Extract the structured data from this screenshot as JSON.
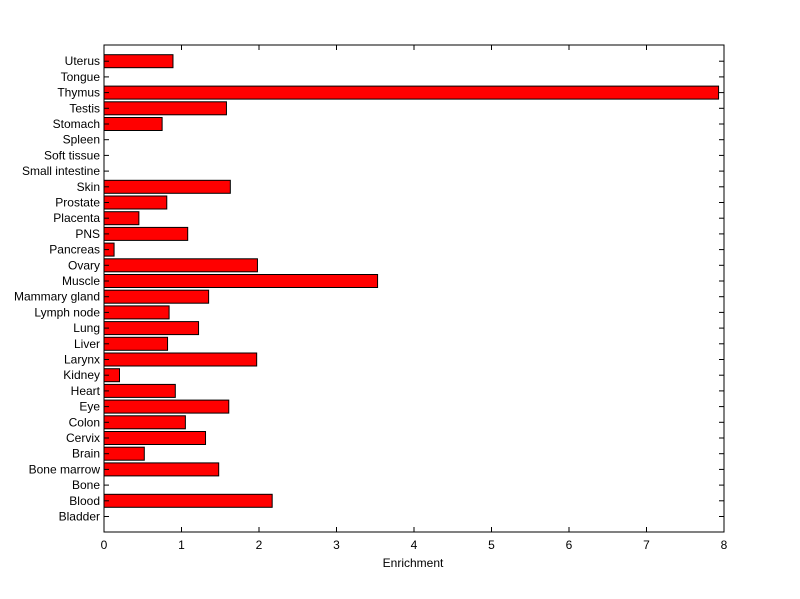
{
  "chart_data": {
    "type": "bar",
    "orientation": "horizontal",
    "title": "",
    "xlabel": "Enrichment",
    "ylabel": "",
    "xlim": [
      0,
      8
    ],
    "x_ticks": [
      0,
      1,
      2,
      3,
      4,
      5,
      6,
      7,
      8
    ],
    "grid": false,
    "legend": "none",
    "bar_color": "#ff0000",
    "bar_edge_color": "#000000",
    "categories": [
      "Bladder",
      "Blood",
      "Bone",
      "Bone marrow",
      "Brain",
      "Cervix",
      "Colon",
      "Eye",
      "Heart",
      "Kidney",
      "Larynx",
      "Liver",
      "Lung",
      "Lymph node",
      "Mammary gland",
      "Muscle",
      "Ovary",
      "Pancreas",
      "PNS",
      "Placenta",
      "Prostate",
      "Skin",
      "Small intestine",
      "Soft tissue",
      "Spleen",
      "Stomach",
      "Testis",
      "Thymus",
      "Tongue",
      "Uterus"
    ],
    "values": [
      0,
      2.17,
      0,
      1.48,
      0.52,
      1.31,
      1.05,
      1.61,
      0.92,
      0.2,
      1.97,
      0.82,
      1.22,
      0.84,
      1.35,
      3.53,
      1.98,
      0.13,
      1.08,
      0.45,
      0.81,
      1.63,
      0,
      0,
      0,
      0.75,
      1.58,
      7.93,
      0,
      0.89
    ]
  }
}
